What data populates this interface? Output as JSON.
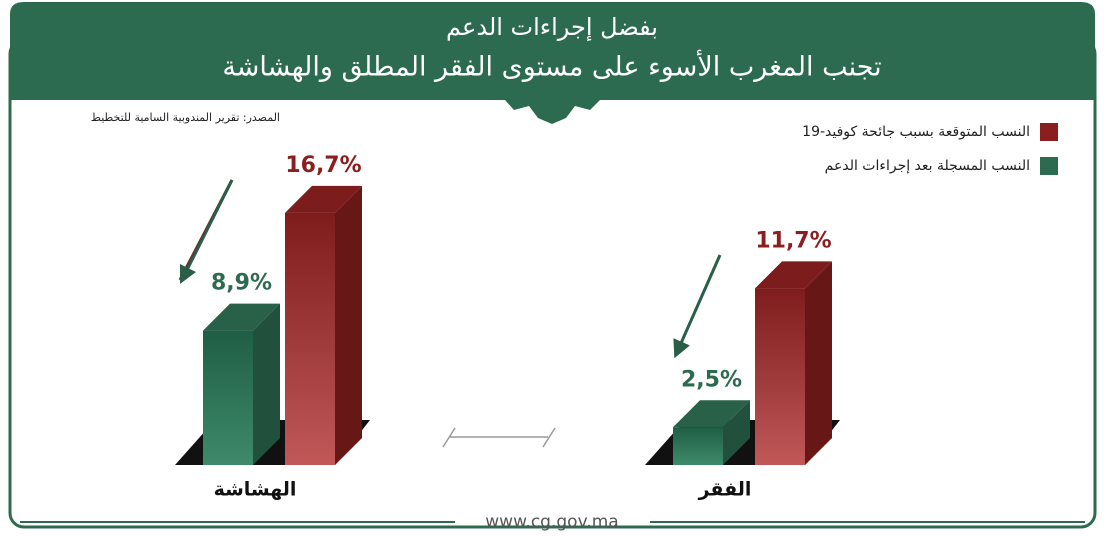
{
  "chart_data": {
    "type": "bar",
    "title": "بفضل إجراءات الدعم",
    "subtitle": "تجنب المغرب الأسوء على مستوى الفقر المطلق والهشاشة",
    "source": "المصدر: تقرير المندوبية السامية للتخطيط",
    "footer": "www.cg.gov.ma",
    "categories": [
      "الفقر",
      "الهشاشة"
    ],
    "series": [
      {
        "name": "النسب المتوقعة بسبب جائحة كوفيد-19",
        "color": "#8b1f1f",
        "values": [
          11.7,
          16.7
        ],
        "value_labels": [
          "11,7%",
          "16,7%"
        ]
      },
      {
        "name": "النسب المسجلة بعد إجراءات الدعم",
        "color": "#2c6b50",
        "values": [
          2.5,
          8.9
        ],
        "value_labels": [
          "2,5%",
          "8,9%"
        ]
      }
    ]
  }
}
